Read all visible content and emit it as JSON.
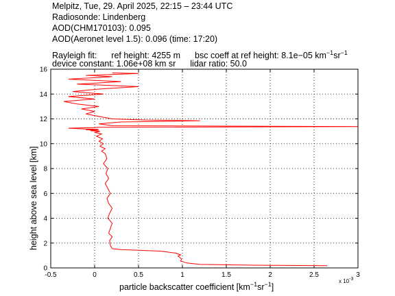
{
  "header": {
    "line1": "Melpitz, Tue, 29. April 2025, 22:15 – 23:44 UTC",
    "line2": "Radiosonde: Lindenberg",
    "line3": "AOD(CHM170103): 0.095",
    "line4": "AOD(Aeronet level 1.5): 0.096   (time: 17:20)",
    "rayleigh_label": "Rayleigh fit:",
    "ref_height": "ref height: 4255 m",
    "bsc_coeff": "bsc coeff at ref height: 8.1e−05 km",
    "device_constant": "device constant: 1.06e+08 km sr",
    "lidar_ratio": "lidar ratio: 50.0"
  },
  "chart_data": {
    "type": "line",
    "title": "",
    "xlabel": "particle backscatter coefficient [km",
    "ylabel": "height above sea level [km]",
    "x_scale_note": "x 10",
    "x_scale_exp": "-3",
    "xlim": [
      -0.5,
      3.0
    ],
    "ylim": [
      0,
      16
    ],
    "xticks": [
      "-0.5",
      "0",
      "0.5",
      "1",
      "1.5",
      "2",
      "2.5",
      "3"
    ],
    "yticks": [
      "0",
      "2",
      "4",
      "6",
      "8",
      "10",
      "12",
      "14",
      "16"
    ],
    "grid": true,
    "series": [
      {
        "color": "#ff0000",
        "x": [
          2.65,
          1.8,
          1.2,
          1.05,
          0.98,
          0.99,
          0.97,
          0.95,
          0.98,
          0.92,
          0.75,
          0.5,
          0.3,
          0.2,
          0.18,
          0.17,
          0.2,
          0.16,
          0.18,
          0.2,
          0.15,
          0.17,
          0.2,
          0.16,
          0.14,
          0.18,
          0.15,
          0.12,
          0.16,
          0.13,
          0.15,
          0.1,
          0.14,
          0.12,
          0.08,
          0.12,
          0.06,
          0.1,
          0.05,
          0.09,
          0.02,
          0.08,
          0.0,
          0.06,
          -0.05,
          0.05,
          -0.1,
          0.04,
          -0.15,
          -0.3,
          0.0,
          0.05,
          3.0,
          0.2,
          0.05,
          0.3,
          0.8,
          1.2,
          0.6,
          0.2,
          0.05,
          -0.1,
          0.0,
          -0.15,
          0.05,
          -0.2,
          -0.35,
          0.0,
          -0.3,
          0.1,
          -0.25,
          0.05,
          0.5,
          -0.2,
          0.3,
          -0.3,
          0.2,
          -0.1,
          0.3,
          0.5,
          0.2
        ],
        "y": [
          0.18,
          0.22,
          0.28,
          0.4,
          0.55,
          0.7,
          0.85,
          0.95,
          1.05,
          1.2,
          1.35,
          1.42,
          1.48,
          1.55,
          1.8,
          2.2,
          2.5,
          2.8,
          3.2,
          3.6,
          4.0,
          4.4,
          4.8,
          5.2,
          5.6,
          6.0,
          6.4,
          6.8,
          7.2,
          7.6,
          8.0,
          8.4,
          8.8,
          9.2,
          9.4,
          9.6,
          9.8,
          10.0,
          10.2,
          10.4,
          10.6,
          10.8,
          10.9,
          11.0,
          11.05,
          11.1,
          11.12,
          11.15,
          11.2,
          11.25,
          11.3,
          11.32,
          11.38,
          11.45,
          11.6,
          11.75,
          11.8,
          11.85,
          11.9,
          12.0,
          12.2,
          12.4,
          12.6,
          12.8,
          13.0,
          13.2,
          13.4,
          13.6,
          13.8,
          14.0,
          14.2,
          14.4,
          14.6,
          14.8,
          15.0,
          15.2,
          15.4,
          15.5,
          15.6,
          15.65,
          15.7
        ]
      }
    ]
  }
}
